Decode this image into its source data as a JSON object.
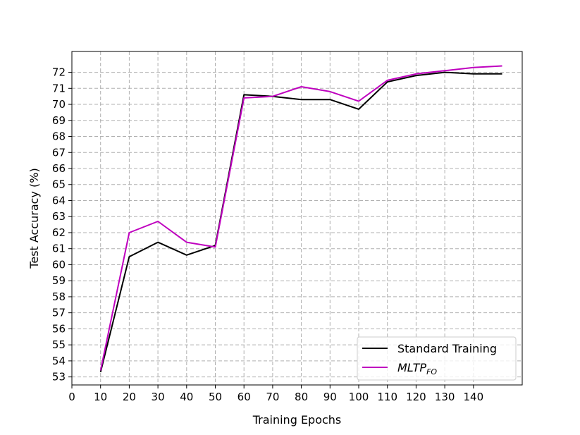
{
  "chart_data": {
    "type": "line",
    "title": "",
    "xlabel": "Training Epochs",
    "ylabel": "Test Accuracy (%)",
    "xlim": [
      0,
      157
    ],
    "ylim": [
      52.5,
      73.3
    ],
    "x_ticks": [
      0,
      10,
      20,
      30,
      40,
      50,
      60,
      70,
      80,
      90,
      100,
      110,
      120,
      130,
      140
    ],
    "y_ticks": [
      53,
      54,
      55,
      56,
      57,
      58,
      59,
      60,
      61,
      62,
      63,
      64,
      65,
      66,
      67,
      68,
      69,
      70,
      71,
      72
    ],
    "grid": true,
    "legend_position": "lower-right",
    "x": [
      10,
      20,
      30,
      40,
      50,
      60,
      70,
      80,
      90,
      100,
      110,
      120,
      130,
      140,
      150
    ],
    "series": [
      {
        "name": "Standard Training",
        "color": "#000000",
        "values": [
          53.3,
          60.5,
          61.4,
          60.6,
          61.2,
          70.6,
          70.5,
          70.3,
          70.3,
          69.7,
          71.4,
          71.8,
          72.0,
          71.9,
          71.9
        ]
      },
      {
        "name": "MLTP",
        "name_subscript": "FO",
        "color": "#bf00bf",
        "values": [
          53.4,
          62.0,
          62.7,
          61.4,
          61.1,
          70.4,
          70.5,
          71.1,
          70.8,
          70.2,
          71.5,
          71.9,
          72.1,
          72.3,
          72.4
        ]
      }
    ]
  }
}
